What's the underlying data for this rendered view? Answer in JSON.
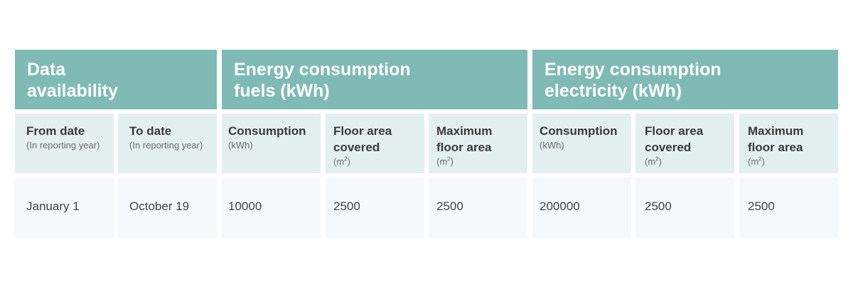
{
  "groups": [
    {
      "line1": "Data",
      "line2": "availability"
    },
    {
      "line1": "Energy consumption",
      "line2": "fuels (kWh)"
    },
    {
      "line1": "Energy consumption",
      "line2": "electricity (kWh)"
    }
  ],
  "columns": [
    {
      "l1": "From date",
      "l2": "",
      "unit": "(In reporting year)"
    },
    {
      "l1": "To date",
      "l2": "",
      "unit": "(In reporting year)"
    },
    {
      "l1": "Consumption",
      "l2": "",
      "unit": "(kWh)"
    },
    {
      "l1": "Floor area",
      "l2": "covered",
      "unit_base": "(m",
      "unit_sup": "2",
      "unit_end": ")"
    },
    {
      "l1": "Maximum",
      "l2": "floor area",
      "unit_base": "(m",
      "unit_sup": "2",
      "unit_end": ")"
    },
    {
      "l1": "Consumption",
      "l2": "",
      "unit": "(kWh)"
    },
    {
      "l1": "Floor area",
      "l2": "covered",
      "unit_base": "(m",
      "unit_sup": "2",
      "unit_end": ")"
    },
    {
      "l1": "Maximum",
      "l2": "floor area",
      "unit_base": "(m",
      "unit_sup": "2",
      "unit_end": ")"
    }
  ],
  "row": [
    "January 1",
    "October 19",
    "10000",
    "2500",
    "2500",
    "200000",
    "2500",
    "2500"
  ]
}
